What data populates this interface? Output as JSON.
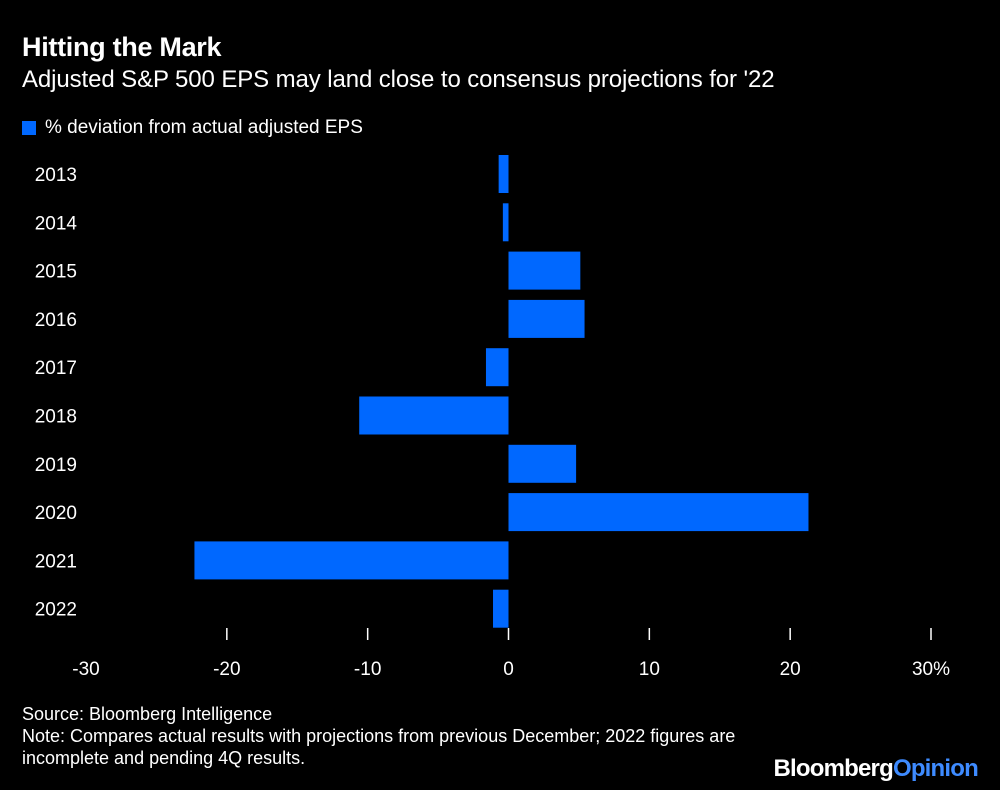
{
  "header": {
    "title": "Hitting the Mark",
    "subtitle": "Adjusted S&P 500 EPS may land close to consensus projections for '22"
  },
  "legend": {
    "label": "% deviation from actual adjusted EPS"
  },
  "footer": {
    "source": "Source: Bloomberg Intelligence",
    "note": "Note: Compares actual results with projections from previous December; 2022 figures are incomplete and pending 4Q results."
  },
  "brand": {
    "primary": "Bloomberg",
    "secondary": "Opinion"
  },
  "colors": {
    "background": "#000000",
    "bar": "#0068ff",
    "text": "#ffffff",
    "brand_secondary": "#3e8bff"
  },
  "chart_data": {
    "type": "bar",
    "orientation": "horizontal",
    "title": "Hitting the Mark",
    "subtitle": "Adjusted S&P 500 EPS may land close to consensus projections for '22",
    "xlabel": "",
    "ylabel": "",
    "xlim": [
      -30,
      30
    ],
    "xticks": [
      -30,
      -20,
      -10,
      0,
      10,
      20,
      30
    ],
    "xtick_labels": [
      "-30",
      "-20",
      "-10",
      "0",
      "10",
      "20",
      "30%"
    ],
    "grid": false,
    "legend_position": "top-left",
    "categories": [
      "2013",
      "2014",
      "2015",
      "2016",
      "2017",
      "2018",
      "2019",
      "2020",
      "2021",
      "2022"
    ],
    "series": [
      {
        "name": "% deviation from actual adjusted EPS",
        "values": [
          -0.7,
          -0.4,
          5.1,
          5.4,
          -1.6,
          -10.6,
          4.8,
          21.3,
          -22.3,
          -1.1
        ]
      }
    ]
  }
}
